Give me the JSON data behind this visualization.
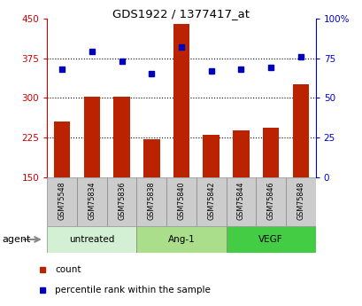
{
  "title": "GDS1922 / 1377417_at",
  "samples": [
    "GSM75548",
    "GSM75834",
    "GSM75836",
    "GSM75838",
    "GSM75840",
    "GSM75842",
    "GSM75844",
    "GSM75846",
    "GSM75848"
  ],
  "bar_values": [
    255,
    303,
    302,
    222,
    440,
    230,
    238,
    243,
    325
  ],
  "percentile_values": [
    68,
    79,
    73,
    65,
    82,
    67,
    68,
    69,
    76
  ],
  "bar_bottom": 150,
  "ylim_left": [
    150,
    450
  ],
  "ylim_right": [
    0,
    100
  ],
  "yticks_left": [
    150,
    225,
    300,
    375,
    450
  ],
  "yticks_right": [
    0,
    25,
    50,
    75,
    100
  ],
  "ytick_labels_right": [
    "0",
    "25",
    "50",
    "75",
    "100%"
  ],
  "bar_color": "#bb2200",
  "dot_color": "#0000bb",
  "groups": [
    {
      "label": "untreated",
      "start": 0,
      "end": 3,
      "color": "#d4f0d4"
    },
    {
      "label": "Ang-1",
      "start": 3,
      "end": 6,
      "color": "#aade8a"
    },
    {
      "label": "VEGF",
      "start": 6,
      "end": 9,
      "color": "#44cc44"
    }
  ],
  "agent_label": "agent",
  "legend": [
    {
      "label": "count",
      "color": "#bb2200"
    },
    {
      "label": "percentile rank within the sample",
      "color": "#0000bb"
    }
  ],
  "grid_yticks": [
    225,
    300,
    375
  ],
  "left_tick_color": "#cc0000",
  "right_tick_color": "#0000cc",
  "bg_color": "#ffffff",
  "plot_bg": "#ffffff",
  "sample_box_color": "#cccccc",
  "sample_box_edge": "#888888"
}
